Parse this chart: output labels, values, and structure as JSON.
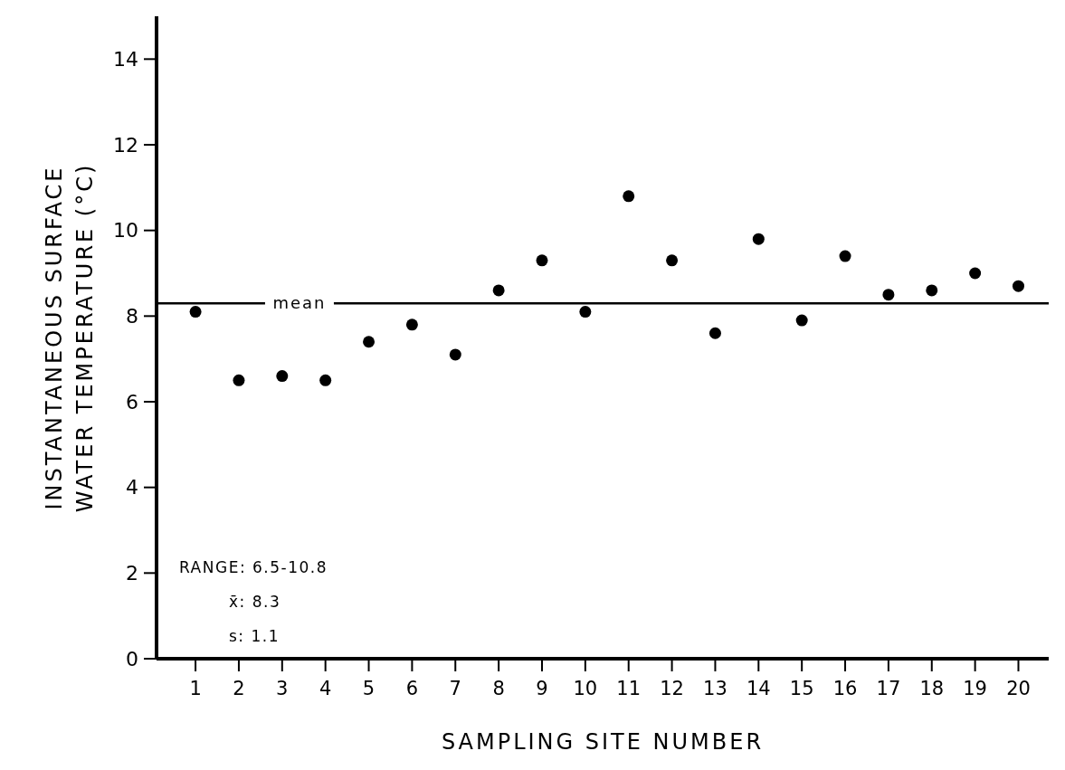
{
  "chart_data": {
    "type": "scatter",
    "xlabel": "SAMPLING SITE NUMBER",
    "ylabel": "INSTANTANEOUS SURFACE\nWATER TEMPERATURE (°C)",
    "x": [
      1,
      2,
      3,
      4,
      5,
      6,
      7,
      8,
      9,
      10,
      11,
      12,
      13,
      14,
      15,
      16,
      17,
      18,
      19,
      20
    ],
    "series": [
      {
        "color": "#000000",
        "values": [
          8.1,
          6.5,
          6.6,
          6.5,
          7.4,
          7.8,
          7.1,
          8.6,
          9.3,
          8.1,
          10.8,
          9.3,
          7.6,
          9.8,
          7.9,
          9.4,
          8.5,
          8.6,
          9.0,
          8.7
        ]
      }
    ],
    "xlim": [
      0.1,
      20.7
    ],
    "xticks": [
      1,
      2,
      3,
      4,
      5,
      6,
      7,
      8,
      9,
      10,
      11,
      12,
      13,
      14,
      15,
      16,
      17,
      18,
      19,
      20
    ],
    "ylim": [
      0,
      15
    ],
    "yticks": [
      0,
      2,
      4,
      6,
      8,
      10,
      12,
      14
    ],
    "marker": "circle",
    "grid": false,
    "ref_lines": [
      {
        "axis": "y",
        "value": 8.3,
        "label": "mean",
        "color": "#000000"
      }
    ],
    "annotations": [
      "RANGE: 6.5-10.8",
      "x̄: 8.3",
      "s: 1.1"
    ]
  }
}
